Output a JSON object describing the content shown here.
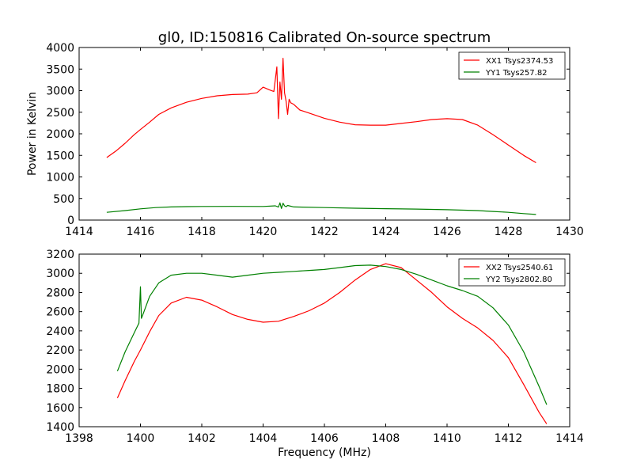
{
  "title": "gl0, ID:150816 Calibrated On-source spectrum",
  "chart_data": [
    {
      "type": "line",
      "id": "top",
      "xlabel": "",
      "ylabel": "Power in Kelvin",
      "xlim": [
        1414,
        1430
      ],
      "ylim": [
        0,
        4000
      ],
      "xticks": [
        1414,
        1416,
        1418,
        1420,
        1422,
        1424,
        1426,
        1428,
        1430
      ],
      "yticks": [
        0,
        500,
        1000,
        1500,
        2000,
        2500,
        3000,
        3500,
        4000
      ],
      "legend_position": "top-right",
      "series": [
        {
          "name": "XX1 Tsys2374.53",
          "color": "#ff0000",
          "x": [
            1414.9,
            1415.2,
            1415.5,
            1415.8,
            1416.0,
            1416.3,
            1416.6,
            1417.0,
            1417.5,
            1418.0,
            1418.5,
            1419.0,
            1419.5,
            1419.8,
            1420.0,
            1420.2,
            1420.35,
            1420.45,
            1420.5,
            1420.55,
            1420.6,
            1420.65,
            1420.7,
            1420.75,
            1420.8,
            1420.85,
            1420.9,
            1421.0,
            1421.2,
            1421.5,
            1422.0,
            1422.5,
            1423.0,
            1423.5,
            1424.0,
            1424.5,
            1425.0,
            1425.5,
            1426.0,
            1426.5,
            1427.0,
            1427.5,
            1428.0,
            1428.5,
            1428.9
          ],
          "y": [
            1450,
            1600,
            1780,
            1980,
            2100,
            2270,
            2450,
            2600,
            2730,
            2820,
            2880,
            2910,
            2920,
            2950,
            3080,
            3020,
            2980,
            3550,
            2350,
            3200,
            2800,
            3750,
            2950,
            2750,
            2450,
            2800,
            2720,
            2680,
            2550,
            2480,
            2360,
            2270,
            2210,
            2200,
            2200,
            2240,
            2280,
            2330,
            2350,
            2330,
            2200,
            1980,
            1740,
            1500,
            1330
          ]
        },
        {
          "name": "YY1 Tsys257.82",
          "color": "#008000",
          "x": [
            1414.9,
            1415.5,
            1416.0,
            1416.5,
            1417.0,
            1417.5,
            1418.0,
            1419.0,
            1420.0,
            1420.4,
            1420.5,
            1420.55,
            1420.6,
            1420.65,
            1420.7,
            1420.75,
            1420.8,
            1421.0,
            1422.0,
            1423.0,
            1424.0,
            1425.0,
            1426.0,
            1427.0,
            1427.5,
            1428.0,
            1428.5,
            1428.9
          ],
          "y": [
            180,
            220,
            260,
            290,
            305,
            312,
            315,
            318,
            315,
            330,
            300,
            400,
            270,
            390,
            330,
            310,
            340,
            305,
            290,
            275,
            265,
            255,
            240,
            220,
            200,
            180,
            150,
            130
          ]
        }
      ]
    },
    {
      "type": "line",
      "id": "bottom",
      "xlabel": "Frequency (MHz)",
      "ylabel": "",
      "xlim": [
        1398,
        1414
      ],
      "ylim": [
        1400,
        3200
      ],
      "xticks": [
        1398,
        1400,
        1402,
        1404,
        1406,
        1408,
        1410,
        1412,
        1414
      ],
      "yticks": [
        1400,
        1600,
        1800,
        2000,
        2200,
        2400,
        2600,
        2800,
        3000,
        3200
      ],
      "legend_position": "top-right",
      "series": [
        {
          "name": "XX2 Tsys2540.61",
          "color": "#ff0000",
          "x": [
            1399.25,
            1399.5,
            1399.8,
            1400.0,
            1400.3,
            1400.6,
            1401.0,
            1401.5,
            1402.0,
            1402.5,
            1403.0,
            1403.5,
            1404.0,
            1404.5,
            1405.0,
            1405.5,
            1406.0,
            1406.5,
            1407.0,
            1407.5,
            1408.0,
            1408.5,
            1409.0,
            1409.5,
            1410.0,
            1410.5,
            1411.0,
            1411.5,
            1412.0,
            1412.5,
            1413.0,
            1413.25
          ],
          "y": [
            1700,
            1880,
            2080,
            2200,
            2390,
            2560,
            2690,
            2750,
            2720,
            2650,
            2570,
            2520,
            2490,
            2500,
            2550,
            2610,
            2690,
            2800,
            2930,
            3040,
            3100,
            3060,
            2930,
            2800,
            2650,
            2530,
            2430,
            2300,
            2120,
            1840,
            1550,
            1430
          ]
        },
        {
          "name": "YY2 Tsys2802.80",
          "color": "#008000",
          "x": [
            1399.25,
            1399.5,
            1399.8,
            1399.95,
            1400.0,
            1400.03,
            1400.08,
            1400.3,
            1400.6,
            1401.0,
            1401.5,
            1402.0,
            1402.5,
            1403.0,
            1403.5,
            1404.0,
            1404.5,
            1405.0,
            1405.5,
            1406.0,
            1406.5,
            1407.0,
            1407.5,
            1408.0,
            1408.5,
            1409.0,
            1409.5,
            1410.0,
            1410.5,
            1411.0,
            1411.5,
            1412.0,
            1412.5,
            1413.0,
            1413.25
          ],
          "y": [
            1980,
            2180,
            2380,
            2480,
            2860,
            2530,
            2570,
            2760,
            2900,
            2980,
            3000,
            3000,
            2980,
            2960,
            2980,
            3000,
            3010,
            3020,
            3030,
            3040,
            3060,
            3080,
            3085,
            3070,
            3040,
            2990,
            2930,
            2870,
            2820,
            2760,
            2640,
            2460,
            2180,
            1820,
            1630
          ]
        }
      ]
    }
  ]
}
